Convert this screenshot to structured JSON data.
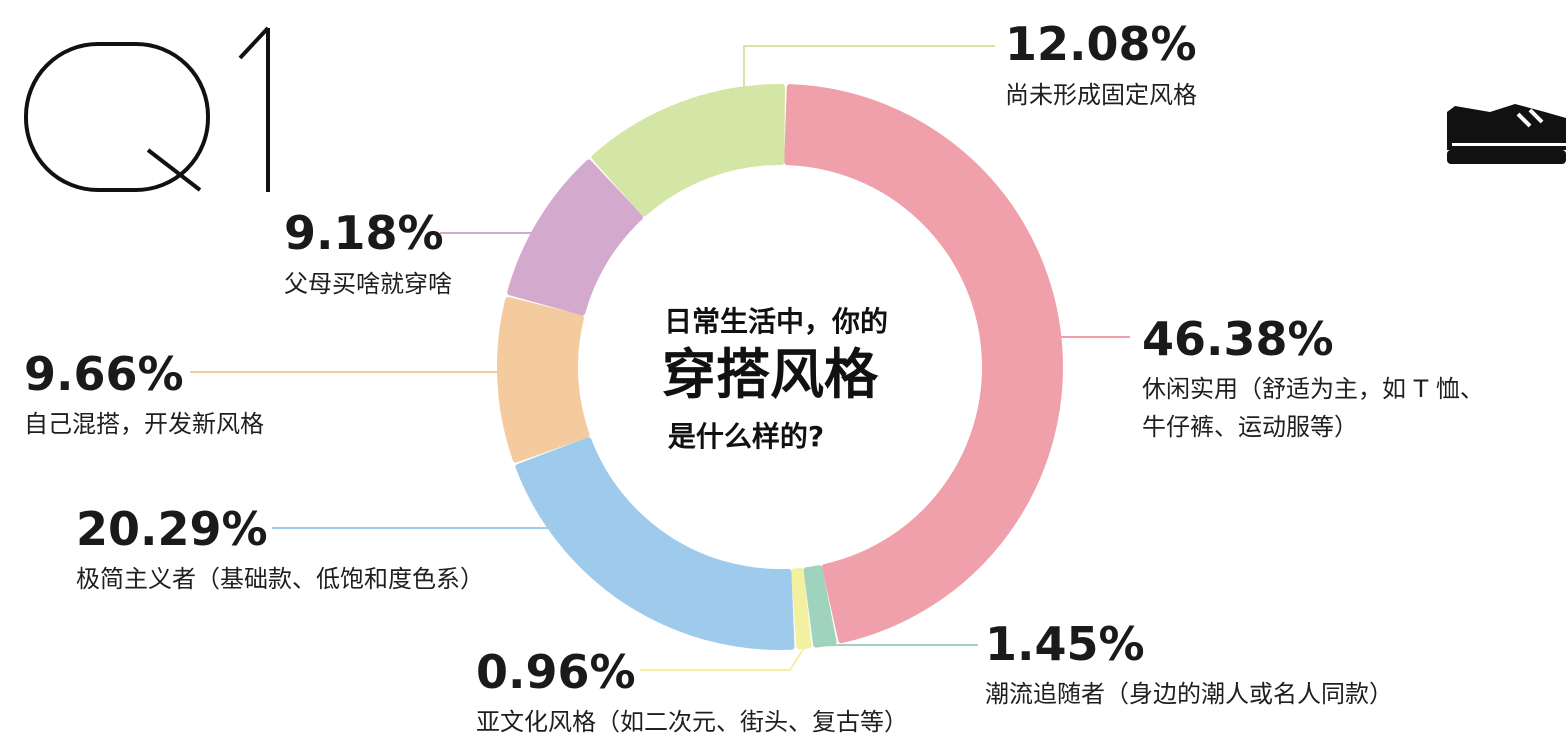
{
  "badge": {
    "text": "Q1"
  },
  "center": {
    "line1": "日常生活中，你的",
    "line2": "穿搭风格",
    "line3": "是什么样的?"
  },
  "icons": {
    "corner": "sneaker-icon"
  },
  "chart_data": {
    "type": "pie",
    "variant": "donut",
    "slices": [
      {
        "pct_text": "46.38%",
        "value": 46.38,
        "label_lines": [
          "休闲实用（舒适为主，如 T 恤、",
          "牛仔裤、运动服等）"
        ],
        "color": "#f0a0aa"
      },
      {
        "pct_text": "1.45%",
        "value": 1.45,
        "label_lines": [
          "潮流追随者（身边的潮人或名人同款）"
        ],
        "color": "#9fd3bd"
      },
      {
        "pct_text": "0.96%",
        "value": 0.96,
        "label_lines": [
          "亚文化风格（如二次元、街头、复古等）"
        ],
        "color": "#f3f0a0"
      },
      {
        "pct_text": "20.29%",
        "value": 20.29,
        "label_lines": [
          "极简主义者（基础款、低饱和度色系）"
        ],
        "color": "#9ecaec"
      },
      {
        "pct_text": "9.66%",
        "value": 9.66,
        "label_lines": [
          "自己混搭，开发新风格"
        ],
        "color": "#f3cb9f"
      },
      {
        "pct_text": "9.18%",
        "value": 9.18,
        "label_lines": [
          "父母买啥就穿啥"
        ],
        "color": "#d3aacd"
      },
      {
        "pct_text": "12.08%",
        "value": 12.08,
        "label_lines": [
          "尚未形成固定风格"
        ],
        "color": "#d4e6a5"
      }
    ]
  }
}
